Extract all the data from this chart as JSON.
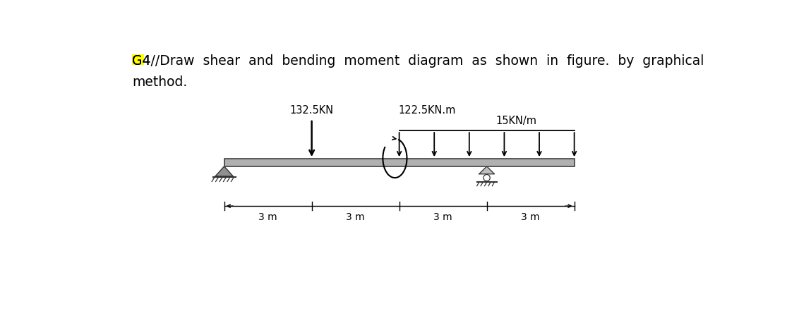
{
  "title_line1": "G4//Draw  shear  and  bending  moment  diagram  as  shown  in  figure.  by  graphical",
  "title_line2": "method.",
  "highlight_color": "#FFFF00",
  "text_color": "#000000",
  "background_color": "#FFFFFF",
  "point_load_label": "132.5KN",
  "moment_label": "122.5KN.m",
  "dist_load_label": "15KN/m",
  "segment_labels": [
    "3 m",
    "3 m",
    "3 m",
    "3 m"
  ],
  "segment_positions": [
    0.0,
    3.0,
    6.0,
    9.0,
    12.0
  ],
  "font_family": "DejaVu Sans",
  "title_fontsize": 13.5,
  "label_fontsize": 10.5,
  "dim_fontsize": 10.0
}
